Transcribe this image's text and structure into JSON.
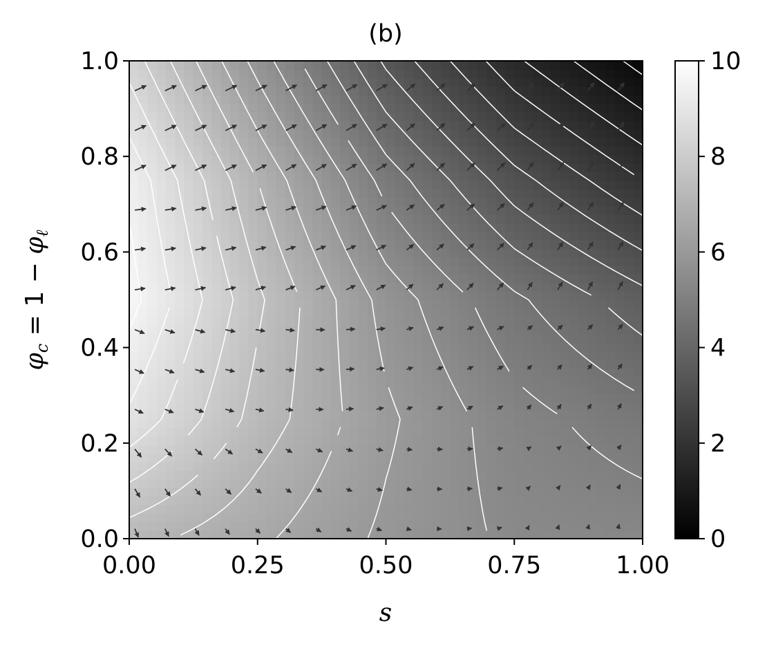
{
  "chart_data": {
    "type": "heatmap",
    "title": "(b)",
    "xlabel": "s",
    "ylabel": "φc = 1 − φℓ",
    "ylabel_parts": {
      "phi": "φ",
      "sub_c": "c",
      "rest": " = 1 − ",
      "phi2": "φ",
      "sub_l": "ℓ"
    },
    "xlim": [
      0,
      1
    ],
    "ylim": [
      0,
      1
    ],
    "x_ticks": [
      0.0,
      0.25,
      0.5,
      0.75,
      1.0
    ],
    "x_tick_labels": [
      "0.00",
      "0.25",
      "0.50",
      "0.75",
      "1.00"
    ],
    "y_ticks": [
      0.0,
      0.2,
      0.4,
      0.6,
      0.8,
      1.0
    ],
    "y_tick_labels": [
      "0.0",
      "0.2",
      "0.4",
      "0.6",
      "0.8",
      "1.0"
    ],
    "colorbar": {
      "range": [
        0,
        10
      ],
      "ticks": [
        0,
        2,
        4,
        6,
        8,
        10
      ],
      "tick_labels": [
        "0",
        "2",
        "4",
        "6",
        "8",
        "10"
      ],
      "colormap": "gray"
    },
    "field_samples": {
      "s": [
        0.0,
        0.25,
        0.5,
        0.75,
        1.0
      ],
      "phi_c": [
        0.0,
        0.25,
        0.5,
        0.75,
        1.0
      ],
      "values_by_row": [
        [
          7.2,
          6.6,
          5.9,
          5.4,
          5.3
        ],
        [
          8.9,
          7.3,
          6.1,
          5.2,
          4.7
        ],
        [
          9.7,
          7.6,
          5.8,
          4.6,
          3.7
        ],
        [
          9.4,
          7.0,
          4.8,
          3.2,
          2.0
        ],
        [
          8.3,
          5.8,
          3.4,
          1.6,
          0.3
        ]
      ]
    },
    "contour_levels": "field isolines at fixed spacing (white)",
    "overlay": "gradient vector field (dark arrows)",
    "grid": false,
    "colors": {
      "contour": "#ffffff",
      "arrow": "#333333",
      "axes": "#000000"
    }
  }
}
